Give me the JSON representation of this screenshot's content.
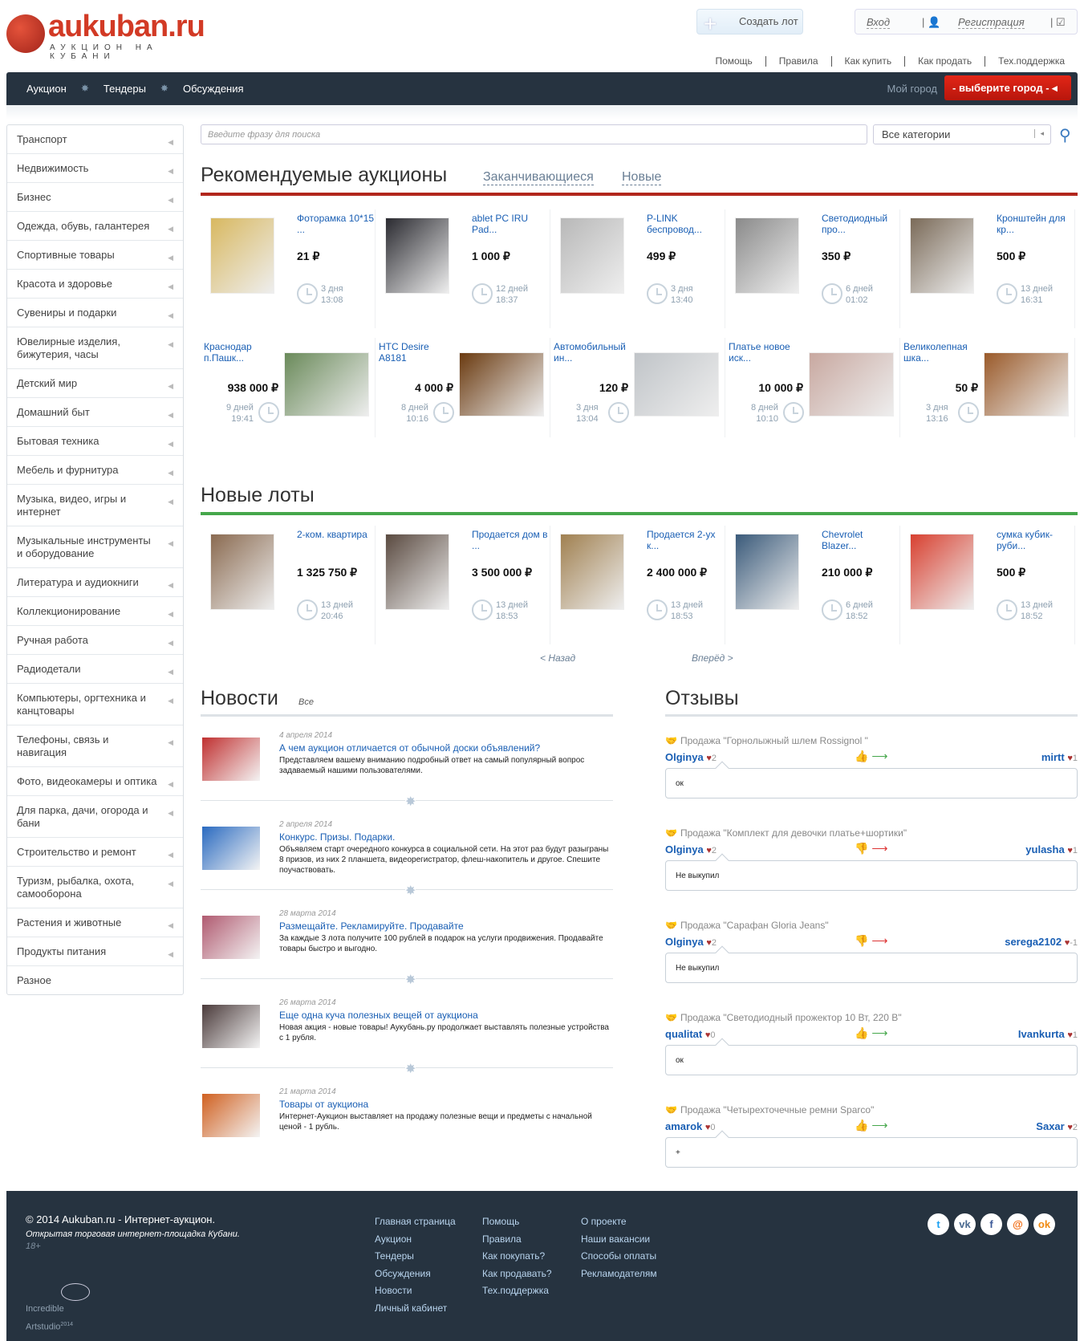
{
  "header": {
    "logo_text": "aukuban.ru",
    "logo_sub": "АУКЦИОН НА КУБАНИ",
    "create_lot": "Создать лот",
    "login": "Вход",
    "register": "Регистрация",
    "top_links": [
      "Помощь",
      "Правила",
      "Как купить",
      "Как продать",
      "Тех.поддержка"
    ]
  },
  "nav": {
    "items": [
      "Аукцион",
      "Тендеры",
      "Обсуждения"
    ],
    "my_city": "Мой город",
    "city_button": "- выберите город -"
  },
  "sidebar": {
    "items": [
      "Транспорт",
      "Недвижимость",
      "Бизнес",
      "Одежда, обувь, галантерея",
      "Спортивные товары",
      "Красота и здоровье",
      "Сувениры и подарки",
      "Ювелирные изделия, бижутерия, часы",
      "Детский мир",
      "Домашний быт",
      "Бытовая техника",
      "Мебель и фурнитура",
      "Музыка, видео, игры и интернет",
      "Музыкальные инструменты и оборудование",
      "Литература и аудиокниги",
      "Коллекционирование",
      "Ручная работа",
      "Радиодетали",
      "Компьютеры, оргтехника и канцтовары",
      "Телефоны, связь и навигация",
      "Фото, видеокамеры и оптика",
      "Для парка, дачи, огорода и бани",
      "Строительство и ремонт",
      "Туризм, рыбалка, охота, самооборона",
      "Растения и животные",
      "Продукты питания",
      "Разное"
    ]
  },
  "search": {
    "placeholder": "Введите фразу для поиска",
    "category": "Все категории"
  },
  "recommended": {
    "title": "Рекомендуемые аукционы",
    "tabs": [
      "Заканчивающиеся",
      "Новые"
    ],
    "row1": [
      {
        "name": "Фоторамка 10*15 ...",
        "price": "21 ₽",
        "days": "3 дня",
        "time": "13:08",
        "color": "#d8b860"
      },
      {
        "name": "ablet PC IRU Pad...",
        "price": "1 000 ₽",
        "days": "12 дней",
        "time": "18:37",
        "color": "#2a2a30"
      },
      {
        "name": "P-LINK беспровод...",
        "price": "499 ₽",
        "days": "3 дня",
        "time": "13:40",
        "color": "#b8b8b8"
      },
      {
        "name": "Светодиодный про...",
        "price": "350 ₽",
        "days": "6 дней",
        "time": "01:02",
        "color": "#8a8a8a"
      },
      {
        "name": "Кронштейн для кр...",
        "price": "500 ₽",
        "days": "13 дней",
        "time": "16:31",
        "color": "#7a6a58"
      }
    ],
    "row2": [
      {
        "name": "Краснодар п.Пашк...",
        "price": "938 000 ₽",
        "days": "9 дней",
        "time": "19:41",
        "color": "#6a8a5a"
      },
      {
        "name": "HTC Desire A8181",
        "price": "4 000 ₽",
        "days": "8 дней",
        "time": "10:16",
        "color": "#6a3a10"
      },
      {
        "name": "Автомобильный ин...",
        "price": "120 ₽",
        "days": "3 дня",
        "time": "13:04",
        "color": "#c0c4c8"
      },
      {
        "name": "Платье новое иск...",
        "price": "10 000 ₽",
        "days": "8 дней",
        "time": "10:10",
        "color": "#c8a8a0"
      },
      {
        "name": "Великолепная шка...",
        "price": "50 ₽",
        "days": "3 дня",
        "time": "13:16",
        "color": "#9a5a2a"
      }
    ]
  },
  "new_lots": {
    "title": "Новые лоты",
    "items": [
      {
        "name": "2-ком. квартира",
        "price": "1 325 750 ₽",
        "days": "13 дней",
        "time": "20:46",
        "color": "#8a6a50"
      },
      {
        "name": "Продается дом в ...",
        "price": "3 500 000 ₽",
        "days": "13 дней",
        "time": "18:53",
        "color": "#5a4a40"
      },
      {
        "name": "Продается 2-ух к...",
        "price": "2 400 000 ₽",
        "days": "13 дней",
        "time": "18:53",
        "color": "#a08050"
      },
      {
        "name": "Chevrolet Blazer...",
        "price": "210 000 ₽",
        "days": "6 дней",
        "time": "18:52",
        "color": "#3a5a7a"
      },
      {
        "name": "сумка кубик-руби...",
        "price": "500 ₽",
        "days": "13 дней",
        "time": "18:52",
        "color": "#d84030"
      }
    ],
    "prev": "< Назад",
    "next": "Вперёд >"
  },
  "news": {
    "title": "Новости",
    "all": "Все",
    "items": [
      {
        "date": "4 апреля 2014",
        "title": "А чем аукцион отличается от обычной доски объявлений?",
        "text": "Представляем вашему вниманию подробный ответ на самый популярный вопрос задаваемый нашими пользователями.",
        "color": "#c03030"
      },
      {
        "date": "2 апреля 2014",
        "title": "Конкурс. Призы. Подарки.",
        "text": "Объявляем старт очередного конкурса в социальной сети. На этот раз будут разыграны 8 призов, из них 2 планшета, видеорегистратор, флеш-накопитель и другое. Спешите поучаствовать.",
        "color": "#2a6ac0"
      },
      {
        "date": "28 марта 2014",
        "title": "Размещайте. Рекламируйте. Продавайте",
        "text": "За каждые 3 лота получите 100 рублей в подарок на услуги продвижения. Продавайте товары быстро и выгодно.",
        "color": "#b05a70"
      },
      {
        "date": "26 марта 2014",
        "title": "Еще одна куча полезных вещей от аукциона",
        "text": "Новая акция - новые товары! Аукубань.ру продолжает выставлять полезные устройства с 1 рубля.",
        "color": "#4a3a3a"
      },
      {
        "date": "21 марта 2014",
        "title": "Товары от аукциона",
        "text": "Интернет-Аукцион выставляет на продажу полезные вещи и предметы с начальной ценой - 1 рубль.",
        "color": "#d06020"
      }
    ]
  },
  "reviews": {
    "title": "Отзывы",
    "items": [
      {
        "lot": "Продажа \"Горнолыжный шлем Rossignol \"",
        "from": "Olginya",
        "from_score": "2",
        "to": "mirtt",
        "to_score": "1",
        "positive": true,
        "text": "ок"
      },
      {
        "lot": "Продажа \"Комплект для девочки платье+шортики\"",
        "from": "Olginya",
        "from_score": "2",
        "to": "yulasha",
        "to_score": "1",
        "positive": false,
        "text": "Не выкупил"
      },
      {
        "lot": "Продажа \"Сарафан Gloria Jeans\"",
        "from": "Olginya",
        "from_score": "2",
        "to": "serega2102",
        "to_score": "-1",
        "positive": false,
        "text": "Не выкупил"
      },
      {
        "lot": "Продажа \"Светодиодный прожектор 10 Вт, 220 В\"",
        "from": "qualitat",
        "from_score": "0",
        "to": "Ivankurta",
        "to_score": "1",
        "positive": true,
        "text": "ок"
      },
      {
        "lot": "Продажа \"Четырехточечные ремни Sparco\"",
        "from": "amarok",
        "from_score": "0",
        "to": "Saxar",
        "to_score": "2",
        "positive": true,
        "text": "+"
      }
    ]
  },
  "footer": {
    "copyright": "© 2014 Aukuban.ru - Интернет-аукцион.",
    "tagline": "Открытая торговая интернет-площадка Кубани.",
    "age": "18+",
    "studio1": "Incredible",
    "studio2": "Artstudio",
    "studio_year": "2014",
    "col1": [
      "Главная страница",
      "Аукцион",
      "Тендеры",
      "Обсуждения",
      "Новости",
      "Личный кабинет"
    ],
    "col2": [
      "Помощь",
      "Правила",
      "Как покупать?",
      "Как продавать?",
      "Тех.поддержка"
    ],
    "col3": [
      "О проекте",
      "Наши вакансии",
      "Способы оплаты",
      "Рекламодателям"
    ],
    "social": [
      "twitter",
      "vk",
      "facebook",
      "mail",
      "odnoklassniki"
    ]
  },
  "colors": {
    "nav_bg": "#263340",
    "accent_red": "#b2261c",
    "accent_green": "#45a74b",
    "link": "#1a5fb4",
    "city_button": "#d21f12"
  }
}
